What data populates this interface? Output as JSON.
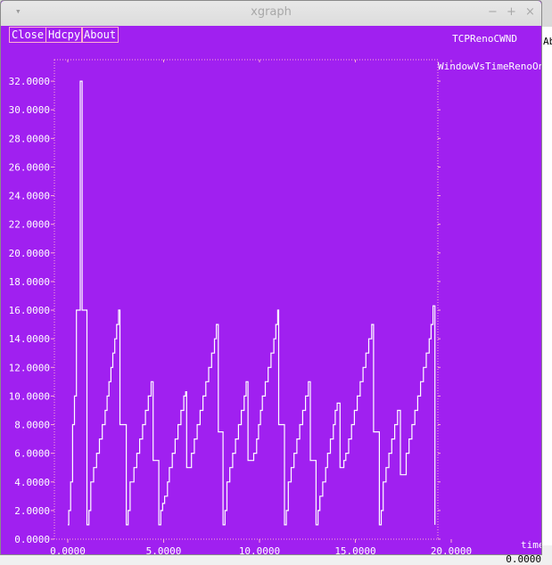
{
  "window": {
    "title": "xgraph",
    "controls": {
      "minimize": "−",
      "maximize": "+",
      "close": "×"
    }
  },
  "buttons": {
    "close": "Close",
    "hdcpy": "Hdcpy",
    "about": "About"
  },
  "plot_title": "TCPRenoCWND",
  "background_edges": {
    "right_text": "Ab",
    "bottom_left": "0",
    "bottom_right": "0.0000"
  },
  "colors": {
    "background": "#a020f0",
    "line": "#ffffff",
    "tick": "#ffb0d0",
    "button_border": "#ffb0d0"
  },
  "chart_data": {
    "type": "line",
    "xlabel": "time",
    "ylabel": "",
    "xlim": [
      0,
      20
    ],
    "ylim": [
      0,
      33.5
    ],
    "xticks": [
      "0.0000",
      "5.0000",
      "10.0000",
      "15.0000",
      "20.0000"
    ],
    "yticks": [
      "0.0000",
      "2.0000",
      "4.0000",
      "6.0000",
      "8.0000",
      "10.0000",
      "12.0000",
      "14.0000",
      "16.0000",
      "18.0000",
      "20.0000",
      "22.0000",
      "24.0000",
      "26.0000",
      "28.0000",
      "30.0000",
      "32.0000"
    ],
    "grid": false,
    "legend_position": "top-right",
    "series": [
      {
        "name": "WindowVsTimeRenoOne",
        "points": [
          [
            0,
            1
          ],
          [
            0.05,
            2
          ],
          [
            0.15,
            4
          ],
          [
            0.25,
            8
          ],
          [
            0.35,
            10
          ],
          [
            0.45,
            16
          ],
          [
            0.55,
            16
          ],
          [
            0.65,
            32
          ],
          [
            0.72,
            32
          ],
          [
            0.75,
            16
          ],
          [
            0.95,
            16
          ],
          [
            1.0,
            1
          ],
          [
            1.1,
            2
          ],
          [
            1.2,
            4
          ],
          [
            1.35,
            5
          ],
          [
            1.5,
            6
          ],
          [
            1.65,
            7
          ],
          [
            1.8,
            8
          ],
          [
            1.95,
            9
          ],
          [
            2.05,
            10
          ],
          [
            2.15,
            11
          ],
          [
            2.25,
            12
          ],
          [
            2.35,
            13
          ],
          [
            2.45,
            14
          ],
          [
            2.55,
            15
          ],
          [
            2.65,
            16
          ],
          [
            2.72,
            8
          ],
          [
            2.95,
            8
          ],
          [
            3.05,
            1
          ],
          [
            3.15,
            2
          ],
          [
            3.25,
            4
          ],
          [
            3.45,
            5
          ],
          [
            3.6,
            6
          ],
          [
            3.75,
            7
          ],
          [
            3.9,
            8
          ],
          [
            4.05,
            9
          ],
          [
            4.2,
            10
          ],
          [
            4.35,
            11
          ],
          [
            4.45,
            5.5
          ],
          [
            4.65,
            5.5
          ],
          [
            4.75,
            1
          ],
          [
            4.85,
            2
          ],
          [
            4.95,
            2.5
          ],
          [
            5.05,
            3
          ],
          [
            5.2,
            4
          ],
          [
            5.3,
            5
          ],
          [
            5.45,
            6
          ],
          [
            5.6,
            7
          ],
          [
            5.75,
            8
          ],
          [
            5.9,
            9
          ],
          [
            6.05,
            10
          ],
          [
            6.15,
            10.3
          ],
          [
            6.2,
            5
          ],
          [
            6.35,
            5
          ],
          [
            6.45,
            6
          ],
          [
            6.6,
            7
          ],
          [
            6.75,
            8
          ],
          [
            6.9,
            9
          ],
          [
            7.05,
            10
          ],
          [
            7.2,
            11
          ],
          [
            7.35,
            12
          ],
          [
            7.5,
            13
          ],
          [
            7.65,
            14
          ],
          [
            7.75,
            15
          ],
          [
            7.85,
            7.5
          ],
          [
            8.05,
            7.5
          ],
          [
            8.1,
            1
          ],
          [
            8.2,
            2
          ],
          [
            8.3,
            4
          ],
          [
            8.45,
            5
          ],
          [
            8.6,
            6
          ],
          [
            8.75,
            7
          ],
          [
            8.9,
            8
          ],
          [
            9.05,
            9
          ],
          [
            9.2,
            10
          ],
          [
            9.3,
            11
          ],
          [
            9.4,
            5.5
          ],
          [
            9.6,
            5.5
          ],
          [
            9.7,
            6
          ],
          [
            9.85,
            7
          ],
          [
            9.95,
            8
          ],
          [
            10.05,
            9
          ],
          [
            10.15,
            10
          ],
          [
            10.3,
            11
          ],
          [
            10.45,
            12
          ],
          [
            10.6,
            13
          ],
          [
            10.75,
            14
          ],
          [
            10.85,
            15
          ],
          [
            10.95,
            16
          ],
          [
            11.0,
            8
          ],
          [
            11.2,
            8
          ],
          [
            11.3,
            1
          ],
          [
            11.4,
            2
          ],
          [
            11.5,
            4
          ],
          [
            11.65,
            5
          ],
          [
            11.8,
            6
          ],
          [
            11.95,
            7
          ],
          [
            12.1,
            8
          ],
          [
            12.25,
            9
          ],
          [
            12.4,
            10
          ],
          [
            12.55,
            11
          ],
          [
            12.65,
            5.5
          ],
          [
            12.85,
            5.5
          ],
          [
            12.95,
            1
          ],
          [
            13.05,
            2
          ],
          [
            13.15,
            3
          ],
          [
            13.3,
            4
          ],
          [
            13.45,
            5
          ],
          [
            13.55,
            6
          ],
          [
            13.7,
            7
          ],
          [
            13.85,
            8
          ],
          [
            13.95,
            9
          ],
          [
            14.05,
            9.5
          ],
          [
            14.2,
            5
          ],
          [
            14.3,
            5
          ],
          [
            14.4,
            5.5
          ],
          [
            14.5,
            6
          ],
          [
            14.65,
            7
          ],
          [
            14.8,
            8
          ],
          [
            14.95,
            9
          ],
          [
            15.1,
            10
          ],
          [
            15.25,
            11
          ],
          [
            15.4,
            12
          ],
          [
            15.55,
            13
          ],
          [
            15.7,
            14
          ],
          [
            15.85,
            15
          ],
          [
            15.95,
            7.5
          ],
          [
            16.2,
            7.5
          ],
          [
            16.25,
            1
          ],
          [
            16.35,
            2
          ],
          [
            16.45,
            4
          ],
          [
            16.6,
            5
          ],
          [
            16.75,
            6
          ],
          [
            16.9,
            7
          ],
          [
            17.05,
            8
          ],
          [
            17.2,
            9
          ],
          [
            17.35,
            4.5
          ],
          [
            17.55,
            4.5
          ],
          [
            17.65,
            6
          ],
          [
            17.8,
            7
          ],
          [
            17.95,
            8
          ],
          [
            18.1,
            9
          ],
          [
            18.25,
            10
          ],
          [
            18.4,
            11
          ],
          [
            18.55,
            12
          ],
          [
            18.7,
            13
          ],
          [
            18.85,
            14
          ],
          [
            18.95,
            15
          ],
          [
            19.05,
            16.3
          ],
          [
            19.12,
            16.3
          ],
          [
            19.15,
            1
          ]
        ]
      }
    ]
  }
}
